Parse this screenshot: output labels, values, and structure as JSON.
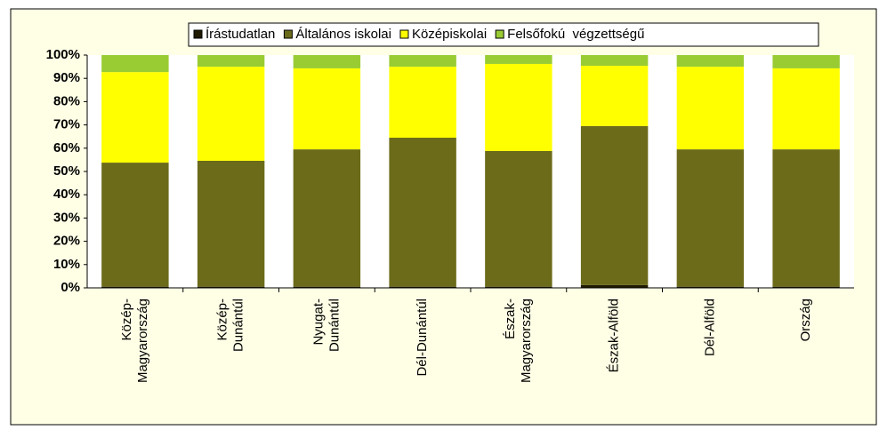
{
  "chart_data": {
    "type": "stacked_bar",
    "categories": [
      [
        "Közép-",
        "Magyarország"
      ],
      [
        "Közép-",
        "Dunántúl"
      ],
      [
        "Nyugat-",
        "Dunántúl"
      ],
      [
        "Dél-Dunántúl"
      ],
      [
        "Észak-",
        "Magyarország"
      ],
      [
        "Észak-Alföld"
      ],
      [
        "Dél-Alföld"
      ],
      [
        "Ország"
      ]
    ],
    "series": [
      {
        "name": "Írástudatlan",
        "color": "#1f1a00",
        "values": [
          0.5,
          0.5,
          0.5,
          0.5,
          0.5,
          1.2,
          0.5,
          0.5
        ]
      },
      {
        "name": "Általános iskolai",
        "color": "#6b6b1a",
        "values": [
          53.3,
          54.1,
          59,
          64,
          58.3,
          68.3,
          59,
          59
        ]
      },
      {
        "name": "Középiskolai",
        "color": "#ffff00",
        "values": [
          38.9,
          40.4,
          34.8,
          30.5,
          37.4,
          25.9,
          35.5,
          34.8
        ]
      },
      {
        "name": "Felsőfokú  végzettségű",
        "color": "#99cc33",
        "values": [
          7.3,
          5.0,
          5.7,
          5.0,
          3.8,
          4.6,
          5.0,
          5.7
        ]
      }
    ],
    "ylim": [
      0,
      100
    ],
    "yticks": [
      {
        "value": 0,
        "label": "0%"
      },
      {
        "value": 10,
        "label": "10%"
      },
      {
        "value": 20,
        "label": "20%"
      },
      {
        "value": 30,
        "label": "30%"
      },
      {
        "value": 40,
        "label": "40%"
      },
      {
        "value": 50,
        "label": "50%"
      },
      {
        "value": 60,
        "label": "60%"
      },
      {
        "value": 70,
        "label": "70%"
      },
      {
        "value": 80,
        "label": "80%"
      },
      {
        "value": 90,
        "label": "90%"
      },
      {
        "value": 100,
        "label": "100%"
      }
    ],
    "legend": "top",
    "grid": false
  }
}
